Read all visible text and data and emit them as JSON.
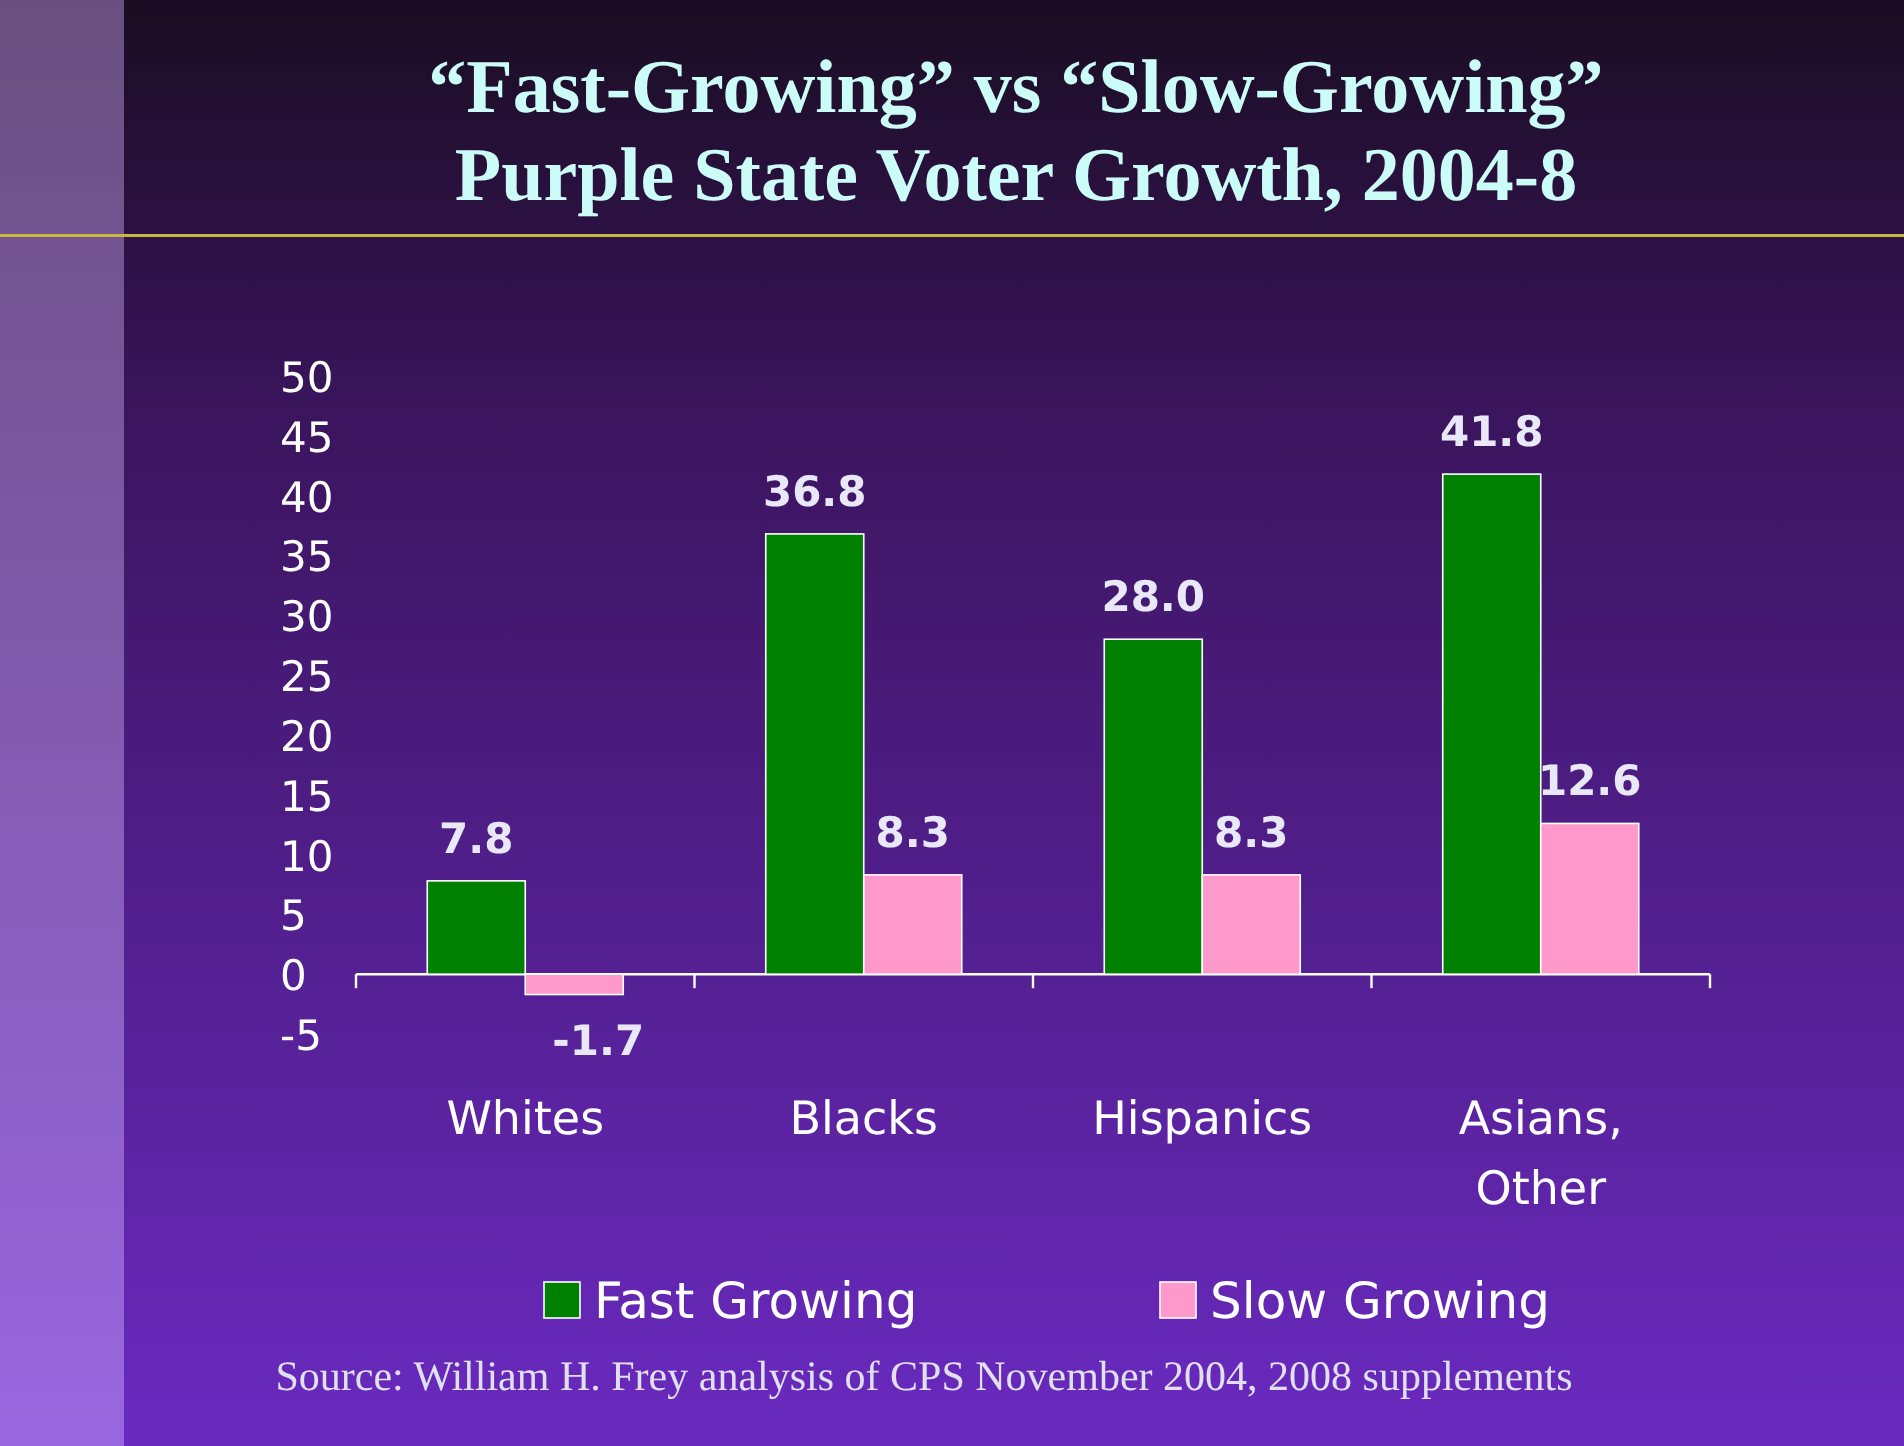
{
  "chart_data": {
    "type": "bar",
    "title": "“Fast-Growing” vs “Slow-Growing”\nPurple State Voter Growth,  2004-8",
    "categories": [
      "Whites",
      "Blacks",
      "Hispanics",
      "Asians, Other"
    ],
    "series": [
      {
        "name": "Fast Growing",
        "color": "#008000",
        "values": [
          7.8,
          36.8,
          28.0,
          41.8
        ],
        "value_labels": [
          "7.8",
          "36.8",
          "28.0",
          "41.8"
        ]
      },
      {
        "name": "Slow Growing",
        "color": "#ff99cc",
        "values": [
          -1.7,
          8.3,
          8.3,
          12.6
        ],
        "value_labels": [
          "-1.7",
          "8.3",
          "8.3",
          "12.6"
        ]
      }
    ],
    "ylim": [
      -5,
      50
    ],
    "yticks": [
      -5,
      0,
      5,
      10,
      15,
      20,
      25,
      30,
      35,
      40,
      45,
      50
    ],
    "legend": "bottom",
    "annotations": [
      "Source: William H. Frey analysis of CPS November 2004, 2008 supplements"
    ]
  }
}
